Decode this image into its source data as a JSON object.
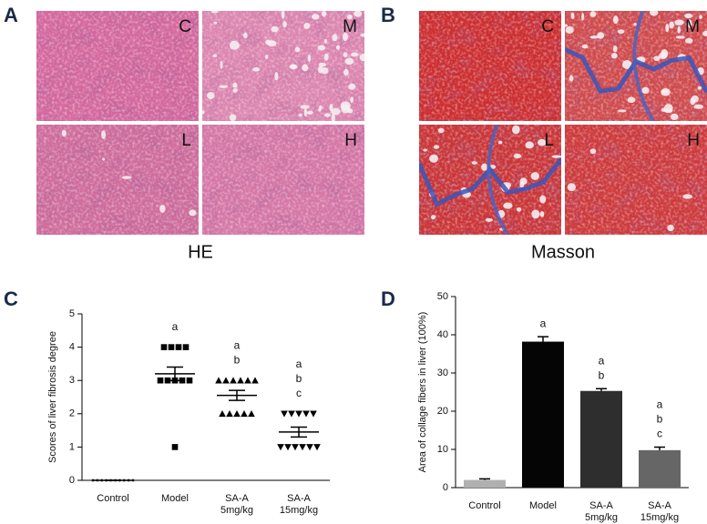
{
  "panel_labels": [
    "A",
    "B",
    "C",
    "D"
  ],
  "histology": [
    {
      "stain": "HE",
      "tiles": [
        "C",
        "M",
        "L",
        "H"
      ]
    },
    {
      "stain": "Masson",
      "tiles": [
        "C",
        "M",
        "L",
        "H"
      ]
    }
  ],
  "chart_data": [
    {
      "type": "scatter",
      "ylabel": "Scores of liver fibrosis degree",
      "categories": [
        "Control",
        "Model",
        "SA-A\n5mg/kg",
        "SA-A\n15mg/kg"
      ],
      "groups": [
        {
          "marker": "circle",
          "values": [
            0,
            0,
            0,
            0,
            0,
            0,
            0,
            0,
            0,
            0
          ],
          "mean": 0,
          "error": 0
        },
        {
          "marker": "square",
          "values": [
            4,
            4,
            4,
            4,
            3,
            3,
            3,
            3,
            3,
            1
          ],
          "mean": 3.2,
          "error": 0.2
        },
        {
          "marker": "triangle-up",
          "values": [
            3,
            3,
            3,
            3,
            3,
            3,
            2,
            2,
            2,
            2,
            2
          ],
          "mean": 2.55,
          "error": 0.15
        },
        {
          "marker": "triangle-down",
          "values": [
            2,
            2,
            2,
            2,
            2,
            1,
            1,
            1,
            1,
            1,
            1
          ],
          "mean": 1.45,
          "error": 0.15
        }
      ],
      "color": "#000000",
      "annotations": [
        [],
        [
          "a"
        ],
        [
          "a",
          "b"
        ],
        [
          "a",
          "b",
          "c"
        ]
      ],
      "ylim": [
        0,
        5
      ],
      "yticks": [
        0,
        1,
        2,
        3,
        4,
        5
      ]
    },
    {
      "type": "bar",
      "ylabel": "Area of collage fibers in liver (100%)",
      "categories": [
        "Control",
        "Model",
        "SA-A\n5mg/kg",
        "SA-A\n15mg/kg"
      ],
      "values": [
        2,
        38.2,
        25.3,
        9.8
      ],
      "errors": [
        0.3,
        1.3,
        0.6,
        0.8
      ],
      "colors": [
        "#b0b0b0",
        "#050505",
        "#2e2e2e",
        "#666666"
      ],
      "annotations": [
        [],
        [
          "a"
        ],
        [
          "a",
          "b"
        ],
        [
          "a",
          "b",
          "c"
        ]
      ],
      "ylim": [
        0,
        50
      ],
      "yticks": [
        0,
        10,
        20,
        30,
        40,
        50
      ]
    }
  ]
}
